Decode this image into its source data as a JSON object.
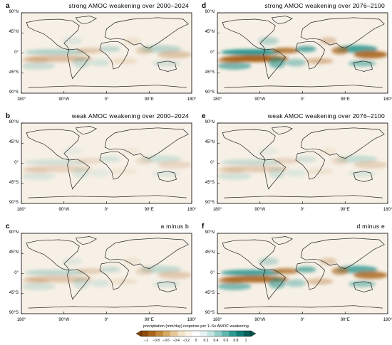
{
  "figure": {
    "panels": [
      {
        "id": "a",
        "letter": "a",
        "title": "strong AMOC weakening over 2000–2024",
        "intensity": 0.35
      },
      {
        "id": "d",
        "letter": "d",
        "title": "strong AMOC weakening over 2076–2100",
        "intensity": 1.0
      },
      {
        "id": "b",
        "letter": "b",
        "title": "weak AMOC weakening over 2000–2024",
        "intensity": 0.2
      },
      {
        "id": "e",
        "letter": "e",
        "title": "weak AMOC weakening over 2076–2100",
        "intensity": 0.25
      },
      {
        "id": "c",
        "letter": "c",
        "title": "a minus b",
        "intensity": 0.3
      },
      {
        "id": "f",
        "letter": "f",
        "title": "d minus e",
        "intensity": 0.9
      }
    ],
    "lat_labels": [
      "90°N",
      "45°N",
      "0°",
      "45°S",
      "90°S"
    ],
    "lon_labels": [
      "180°",
      "90°W",
      "0°",
      "90°E",
      "180°"
    ],
    "colorbar": {
      "label": "precipitation (mm/day) response per 1–Sv AMOC weakening",
      "ticks": [
        "−1",
        "−0.8",
        "−0.6",
        "−0.4",
        "−0.2",
        "0",
        "0.2",
        "0.4",
        "0.6",
        "0.8",
        "1"
      ],
      "colors": [
        "#8c4a0c",
        "#a9651c",
        "#c2883a",
        "#d6a965",
        "#e6c898",
        "#f3e4c8",
        "#fbf3e6",
        "#ffffff",
        "#e6f4f3",
        "#c4e6e3",
        "#93d0cb",
        "#5fb7b0",
        "#2f9a93",
        "#0f7d76",
        "#045e58"
      ]
    },
    "colors": {
      "negative": "#a9651c",
      "positive": "#1a8f87",
      "coast": "#222222"
    }
  }
}
